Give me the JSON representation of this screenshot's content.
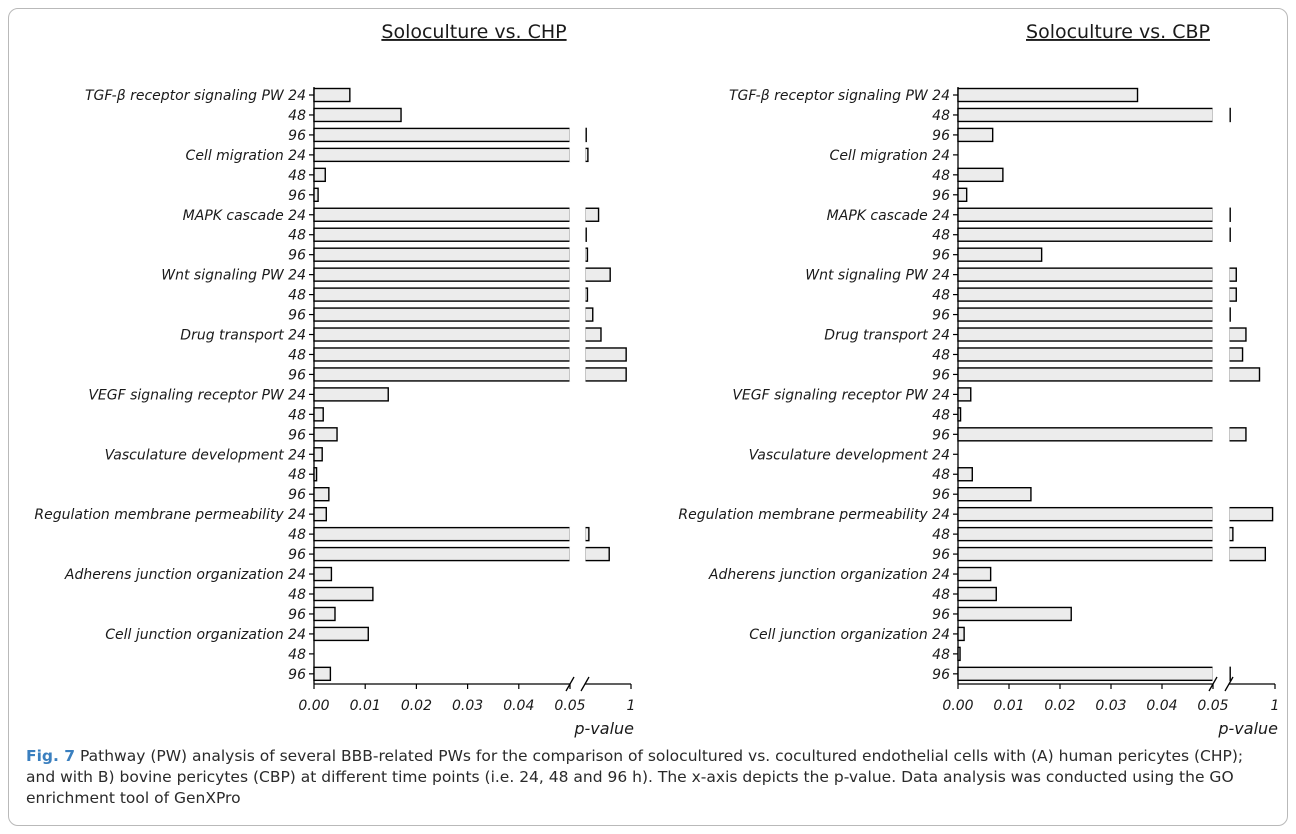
{
  "caption": {
    "label": "Fig. 7",
    "text": " Pathway (PW) analysis of several BBB-related PWs for the comparison of solocultured vs. cocultured endothelial cells with (A) human pericytes (CHP); and with B) bovine pericytes (CBP) at different time points (i.e. 24, 48 and 96 h). The x-axis depicts the p-value. Data analysis was conducted using the GO enrichment tool of GenXPro"
  },
  "colors": {
    "bar_fill": "#ececec",
    "bar_stroke": "#000000",
    "text": "#1a1a1a"
  },
  "chart_data": [
    {
      "type": "bar",
      "orientation": "horizontal",
      "title": "Soloculture vs. CHP",
      "xlabel": "p-value",
      "x_axis": {
        "segments": [
          {
            "range": [
              0,
              0.05
            ]
          },
          {
            "range": [
              0.05,
              1
            ]
          }
        ],
        "broken_between": [
          0.05,
          0.05
        ],
        "tick_labels": [
          "0.00",
          "0.01",
          "0.02",
          "0.03",
          "0.04",
          "0.05",
          "1"
        ]
      },
      "categories": [
        "TGF-β receptor signaling PW 24",
        "48",
        "96",
        "Cell migration 24",
        "48",
        "96",
        "MAPK cascade 24",
        "48",
        "96",
        "Wnt signaling PW 24",
        "48",
        "96",
        "Drug transport 24",
        "48",
        "96",
        "VEGF signaling receptor PW 24",
        "48",
        "96",
        "Vasculature development 24",
        "48",
        "96",
        "Regulation membrane permeability 24",
        "48",
        "96",
        "Adherens junction organization 24",
        "48",
        "96",
        "Cell junction organization 24",
        "48",
        "96"
      ],
      "values": [
        0.007,
        0.017,
        0.06,
        0.11,
        0.0022,
        0.0008,
        0.33,
        0.06,
        0.1,
        0.57,
        0.1,
        0.21,
        0.38,
        0.9,
        0.9,
        0.0145,
        0.0018,
        0.0045,
        0.0016,
        0.0005,
        0.0029,
        0.0024,
        0.13,
        0.55,
        0.0034,
        0.0115,
        0.0041,
        0.0106,
        0,
        0.0032
      ],
      "grid": false,
      "legend": "none"
    },
    {
      "type": "bar",
      "orientation": "horizontal",
      "title": "Soloculture vs. CBP",
      "xlabel": "p-value",
      "x_axis": {
        "segments": [
          {
            "range": [
              0,
              0.05
            ]
          },
          {
            "range": [
              0.05,
              1
            ]
          }
        ],
        "broken_between": [
          0.05,
          0.05
        ],
        "tick_labels": [
          "0.00",
          "0.01",
          "0.02",
          "0.03",
          "0.04",
          "0.05",
          "1"
        ]
      },
      "categories": [
        "TGF-β receptor signaling PW 24",
        "48",
        "96",
        "Cell migration 24",
        "48",
        "96",
        "MAPK cascade 24",
        "48",
        "96",
        "Wnt signaling PW 24",
        "48",
        "96",
        "Drug transport 24",
        "48",
        "96",
        "VEGF signaling receptor PW 24",
        "48",
        "96",
        "Vasculature development 24",
        "48",
        "96",
        "Regulation membrane permeability 24",
        "48",
        "96",
        "Adherens junction organization 24",
        "48",
        "96",
        "Cell junction organization 24",
        "48",
        "96"
      ],
      "values": [
        0.0352,
        0.06,
        0.0068,
        0,
        0.0088,
        0.0017,
        0.07,
        0.06,
        0.0164,
        0.2,
        0.2,
        0.06,
        0.4,
        0.33,
        0.68,
        0.0025,
        0.0005,
        0.4,
        0,
        0.0028,
        0.0143,
        0.95,
        0.13,
        0.8,
        0.0064,
        0.0075,
        0.0222,
        0.0012,
        0.0004,
        0.06
      ],
      "grid": false,
      "legend": "none"
    }
  ]
}
